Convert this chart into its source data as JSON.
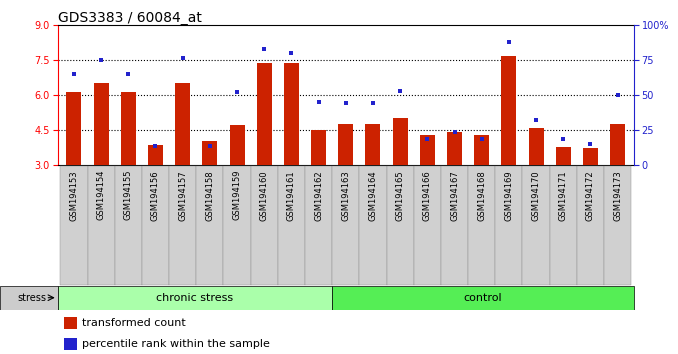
{
  "title": "GDS3383 / 60084_at",
  "samples": [
    "GSM194153",
    "GSM194154",
    "GSM194155",
    "GSM194156",
    "GSM194157",
    "GSM194158",
    "GSM194159",
    "GSM194160",
    "GSM194161",
    "GSM194162",
    "GSM194163",
    "GSM194164",
    "GSM194165",
    "GSM194166",
    "GSM194167",
    "GSM194168",
    "GSM194169",
    "GSM194170",
    "GSM194171",
    "GSM194172",
    "GSM194173"
  ],
  "transformed_count": [
    6.1,
    6.5,
    6.1,
    3.85,
    6.5,
    4.0,
    4.7,
    7.35,
    7.35,
    4.5,
    4.75,
    4.75,
    5.0,
    4.25,
    4.4,
    4.25,
    7.65,
    4.55,
    3.75,
    3.7,
    4.75
  ],
  "percentile_rank": [
    65,
    75,
    65,
    13,
    76,
    13,
    52,
    83,
    80,
    45,
    44,
    44,
    53,
    18,
    23,
    18,
    88,
    32,
    18,
    15,
    50
  ],
  "chronic_stress_count": 10,
  "control_count": 11,
  "ylim_left": [
    3,
    9
  ],
  "ylim_right": [
    0,
    100
  ],
  "yticks_left": [
    3,
    4.5,
    6,
    7.5,
    9
  ],
  "yticks_right": [
    0,
    25,
    50,
    75,
    100
  ],
  "bar_color": "#cc2200",
  "dot_color": "#2222cc",
  "chronic_stress_bg": "#aaffaa",
  "control_bg": "#55ee55",
  "stress_label_bg": "#cccccc",
  "bar_width": 0.55,
  "title_fontsize": 10,
  "tick_fontsize": 7,
  "label_fontsize": 8,
  "legend_fontsize": 8
}
